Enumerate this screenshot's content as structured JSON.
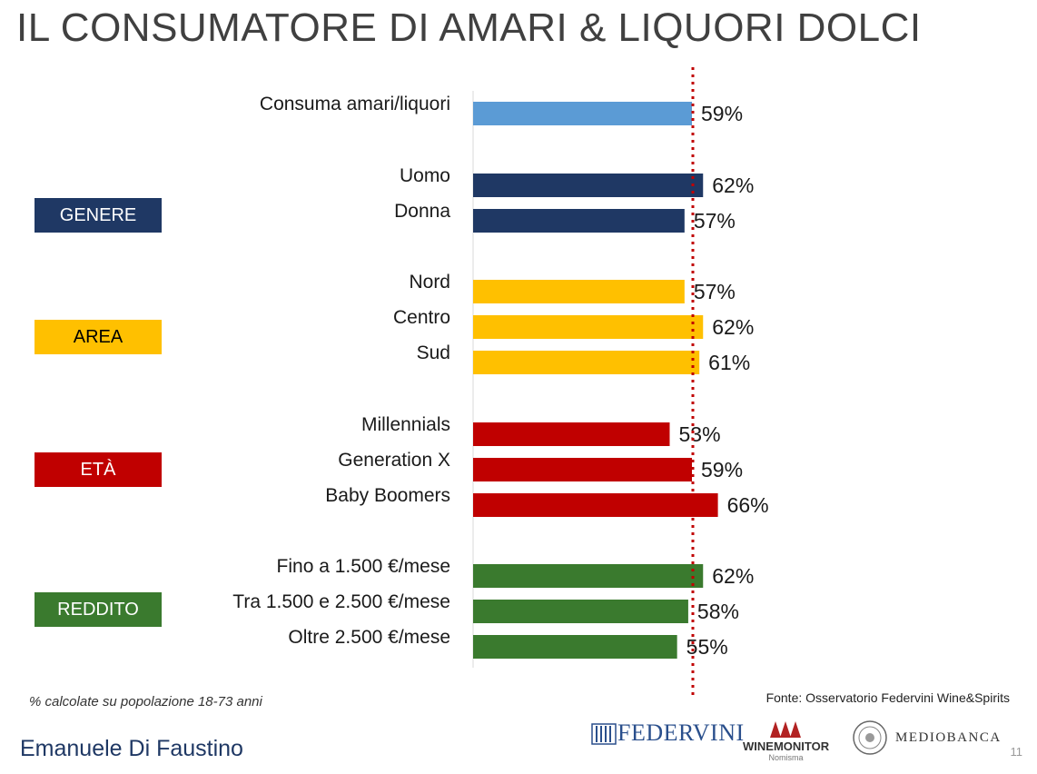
{
  "title": "IL CONSUMATORE DI AMARI & LIQUORI DOLCI",
  "chart_data": {
    "type": "bar",
    "orientation": "horizontal",
    "reference_line": {
      "value": 59,
      "style": "dotted",
      "color": "#c00000"
    },
    "bars": [
      {
        "label": "Consuma amari/liquori",
        "value": 59,
        "value_label": "59%",
        "color": "#5b9bd5"
      },
      {
        "label": "Uomo",
        "value": 62,
        "value_label": "62%",
        "color": "#1f3864"
      },
      {
        "label": "Donna",
        "value": 57,
        "value_label": "57%",
        "color": "#1f3864"
      },
      {
        "label": "Nord",
        "value": 57,
        "value_label": "57%",
        "color": "#ffc000"
      },
      {
        "label": "Centro",
        "value": 62,
        "value_label": "62%",
        "color": "#ffc000"
      },
      {
        "label": "Sud",
        "value": 61,
        "value_label": "61%",
        "color": "#ffc000"
      },
      {
        "label": "Millennials",
        "value": 53,
        "value_label": "53%",
        "color": "#c00000"
      },
      {
        "label": "Generation X",
        "value": 59,
        "value_label": "59%",
        "color": "#c00000"
      },
      {
        "label": "Baby Boomers",
        "value": 66,
        "value_label": "66%",
        "color": "#c00000"
      },
      {
        "label": "Fino a 1.500 €/mese",
        "value": 62,
        "value_label": "62%",
        "color": "#3a7a2e"
      },
      {
        "label": "Tra 1.500 e 2.500 €/mese",
        "value": 58,
        "value_label": "58%",
        "color": "#3a7a2e"
      },
      {
        "label": "Oltre 2.500 €/mese",
        "value": 55,
        "value_label": "55%",
        "color": "#3a7a2e"
      }
    ],
    "groups": [
      {
        "label": "GENERE",
        "color": "#1f3864",
        "text_color": "#ffffff"
      },
      {
        "label": "AREA",
        "color": "#ffc000",
        "text_color": "#000000"
      },
      {
        "label": "ETÀ",
        "color": "#c00000",
        "text_color": "#ffffff"
      },
      {
        "label": "REDDITO",
        "color": "#3a7a2e",
        "text_color": "#ffffff"
      }
    ]
  },
  "footnote": "% calcolate su popolazione 18-73 anni",
  "source": "Fonte: Osservatorio Federvini Wine&Spirits",
  "author": "Emanuele Di Faustino",
  "logos": {
    "federvini": "FEDERVINI",
    "winemonitor": "WINEMONITOR",
    "winemonitor_sub": "Nomisma",
    "mediobanca": "MEDIOBANCA"
  },
  "page_number": "11"
}
